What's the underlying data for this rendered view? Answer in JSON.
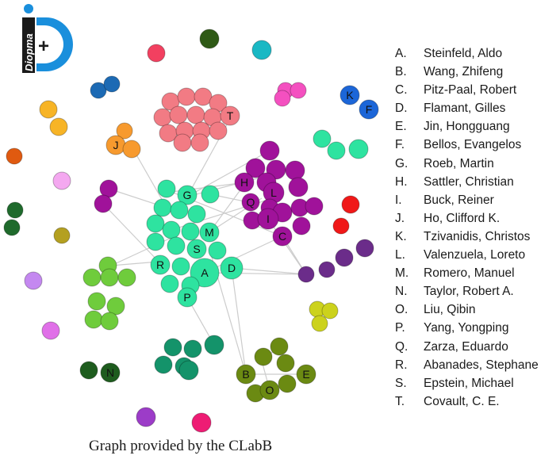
{
  "logo": {
    "wordmark": "Diopma",
    "symbol": "+"
  },
  "caption": "Graph provided by the CLabB",
  "colors": {
    "green_cluster": "#2ee3a0",
    "purple_cluster": "#a0129a",
    "salmon_cluster": "#f27b84",
    "lime_cluster": "#6fcc3c",
    "olive_cluster": "#6b8a12",
    "teal_cluster": "#14936a",
    "violet_cluster": "#6b2c8a",
    "edge": "#cccccc"
  },
  "legend": [
    {
      "letter": "A.",
      "name": "Steinfeld, Aldo"
    },
    {
      "letter": "B.",
      "name": "Wang, Zhifeng"
    },
    {
      "letter": "C.",
      "name": "Pitz-Paal, Robert"
    },
    {
      "letter": "D.",
      "name": "Flamant, Gilles"
    },
    {
      "letter": "E.",
      "name": "Jin, Hongguang"
    },
    {
      "letter": "F.",
      "name": "Bellos, Evangelos"
    },
    {
      "letter": "G.",
      "name": "Roeb, Martin"
    },
    {
      "letter": "H.",
      "name": "Sattler, Christian"
    },
    {
      "letter": "I.",
      "name": "Buck, Reiner"
    },
    {
      "letter": "J.",
      "name": "Ho, Clifford K."
    },
    {
      "letter": "K.",
      "name": "Tzivanidis, Christos"
    },
    {
      "letter": "L.",
      "name": "Valenzuela, Loreto"
    },
    {
      "letter": "M.",
      "name": "Romero, Manuel"
    },
    {
      "letter": "N.",
      "name": "Taylor, Robert A."
    },
    {
      "letter": "O.",
      "name": "Liu, Qibin"
    },
    {
      "letter": "P.",
      "name": "Yang, Yongping"
    },
    {
      "letter": "Q.",
      "name": "Zarza, Eduardo"
    },
    {
      "letter": "R.",
      "name": "Abanades, Stephane"
    },
    {
      "letter": "S.",
      "name": "Epstein, Michael"
    },
    {
      "letter": "T.",
      "name": "Covault, C. E."
    }
  ],
  "node_labels": [
    "A",
    "B",
    "C",
    "D",
    "E",
    "F",
    "G",
    "H",
    "I",
    "J",
    "K",
    "L",
    "M",
    "N",
    "O",
    "P",
    "Q",
    "R",
    "S",
    "T"
  ]
}
